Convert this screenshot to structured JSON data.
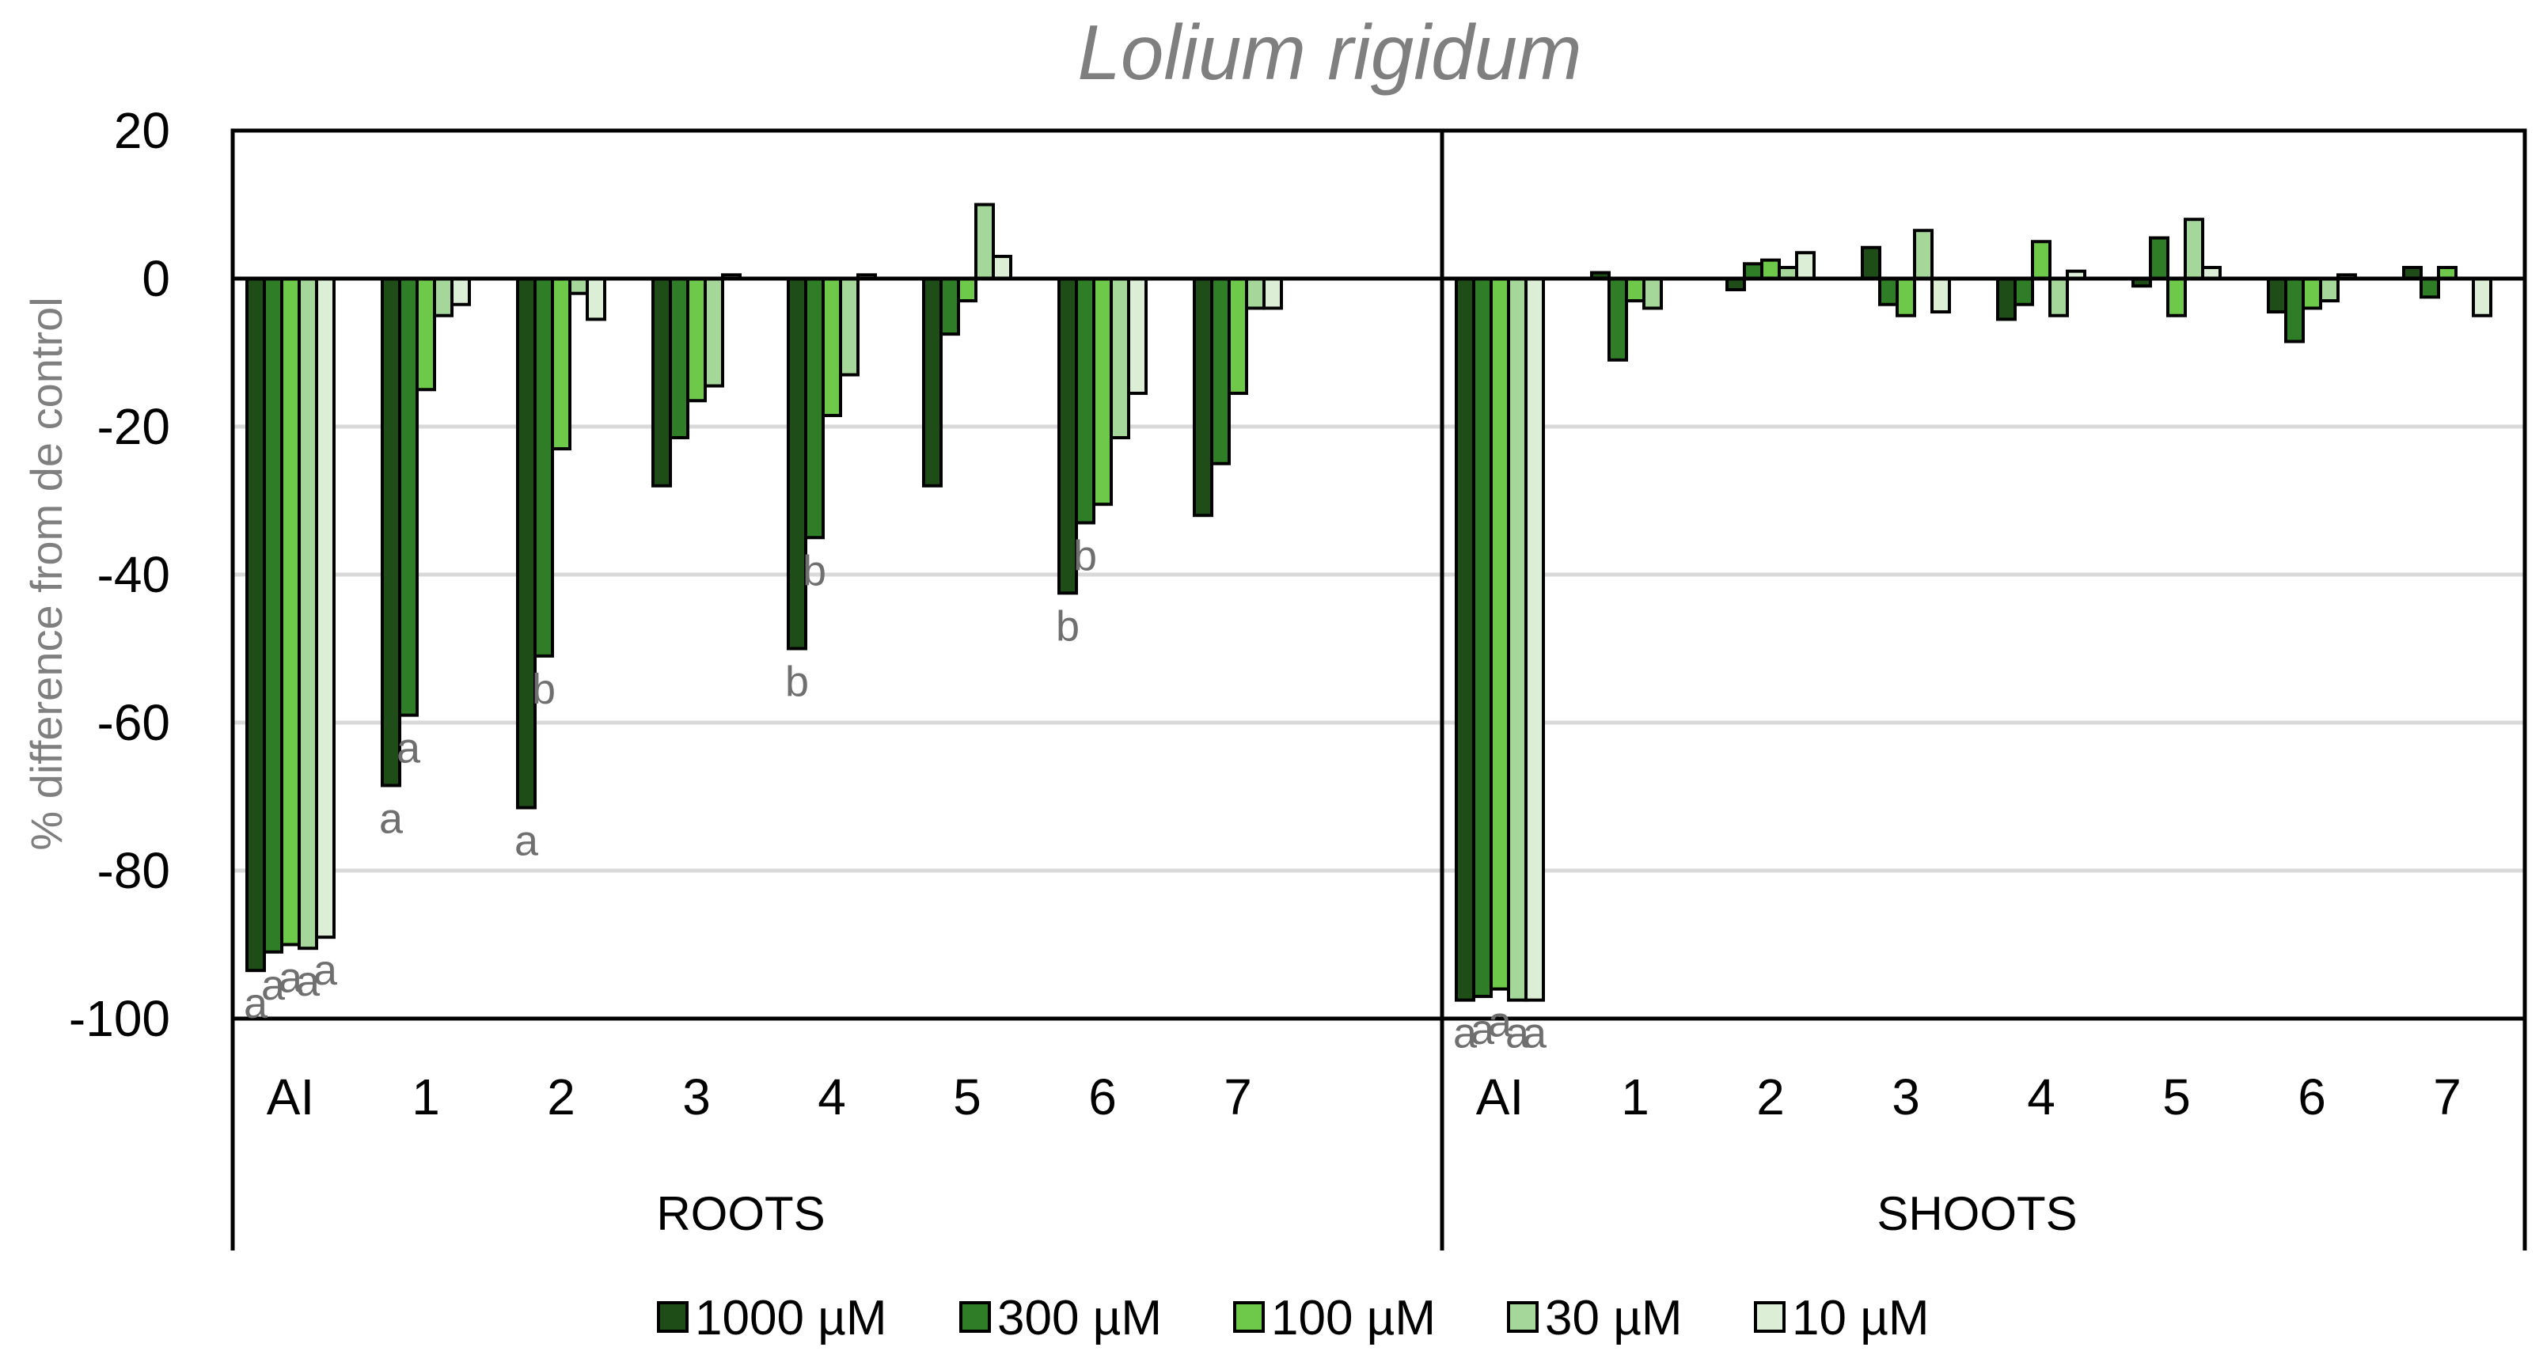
{
  "chart_data": {
    "type": "bar",
    "title": "Lolium rigidum",
    "ylabel": "% difference from de control",
    "ylim": [
      -100,
      20
    ],
    "yticks": [
      20,
      0,
      -20,
      -40,
      -60,
      -80,
      -100
    ],
    "grid": true,
    "legend_position": "bottom",
    "categories": [
      "AI",
      "1",
      "2",
      "3",
      "4",
      "5",
      "6",
      "7"
    ],
    "groups": [
      "ROOTS",
      "SHOOTS"
    ],
    "series": [
      {
        "name": "1000 µM",
        "color": "#1e4d17"
      },
      {
        "name": "300 µM",
        "color": "#2f7d26"
      },
      {
        "name": "100 µM",
        "color": "#6ec94a"
      },
      {
        "name": "30 µM",
        "color": "#a5d69a"
      },
      {
        "name": "10 µM",
        "color": "#dcefd6"
      }
    ],
    "values": {
      "ROOTS": [
        [
          -93.5,
          -91,
          -90,
          -90.5,
          -89
        ],
        [
          -68.5,
          -59,
          -15,
          -5,
          -3.5
        ],
        [
          -71.5,
          -51,
          -23,
          -2,
          -5.5
        ],
        [
          -28,
          -21.5,
          -16.5,
          -14.5,
          0.5
        ],
        [
          -50,
          -35,
          -18.5,
          -13,
          0.5
        ],
        [
          -28,
          -7.5,
          -3,
          10,
          3
        ],
        [
          -42.5,
          -33,
          -30.5,
          -21.5,
          -15.5
        ],
        [
          -32,
          -25,
          -15.5,
          -4,
          -4
        ]
      ],
      "SHOOTS": [
        [
          -97.5,
          -97,
          -96,
          -97.5,
          -97.5
        ],
        [
          0.8,
          -11,
          -3,
          -4,
          0
        ],
        [
          -1.5,
          2,
          2.5,
          1.5,
          3.5
        ],
        [
          4.2,
          -3.5,
          -5,
          6.5,
          -4.5
        ],
        [
          -5.5,
          -3.5,
          5,
          -5,
          1
        ],
        [
          -1,
          5.5,
          -5,
          8,
          1.5
        ],
        [
          -4.5,
          -8.5,
          -4,
          -3,
          0.5
        ],
        [
          1.5,
          -2.5,
          1.5,
          0,
          -5
        ]
      ]
    },
    "annotations": {
      "ROOTS": [
        [
          "a",
          "a",
          "a",
          "a",
          "a"
        ],
        [
          "a",
          "a",
          "",
          "",
          ""
        ],
        [
          "a",
          "b",
          "",
          "",
          ""
        ],
        [
          "",
          "",
          "",
          "",
          ""
        ],
        [
          "b",
          "b",
          "",
          "",
          ""
        ],
        [
          "",
          "",
          "",
          "",
          ""
        ],
        [
          "b",
          "b",
          "",
          "",
          ""
        ],
        [
          "",
          "",
          "",
          "",
          ""
        ]
      ],
      "SHOOTS": [
        [
          "a",
          "a",
          "a",
          "a",
          "a"
        ],
        [
          "",
          "",
          "",
          "",
          ""
        ],
        [
          "",
          "",
          "",
          "",
          ""
        ],
        [
          "",
          "",
          "",
          "",
          ""
        ],
        [
          "",
          "",
          "",
          "",
          ""
        ],
        [
          "",
          "",
          "",
          "",
          ""
        ],
        [
          "",
          "",
          "",
          "",
          ""
        ],
        [
          "",
          "",
          "",
          "",
          ""
        ]
      ]
    }
  }
}
